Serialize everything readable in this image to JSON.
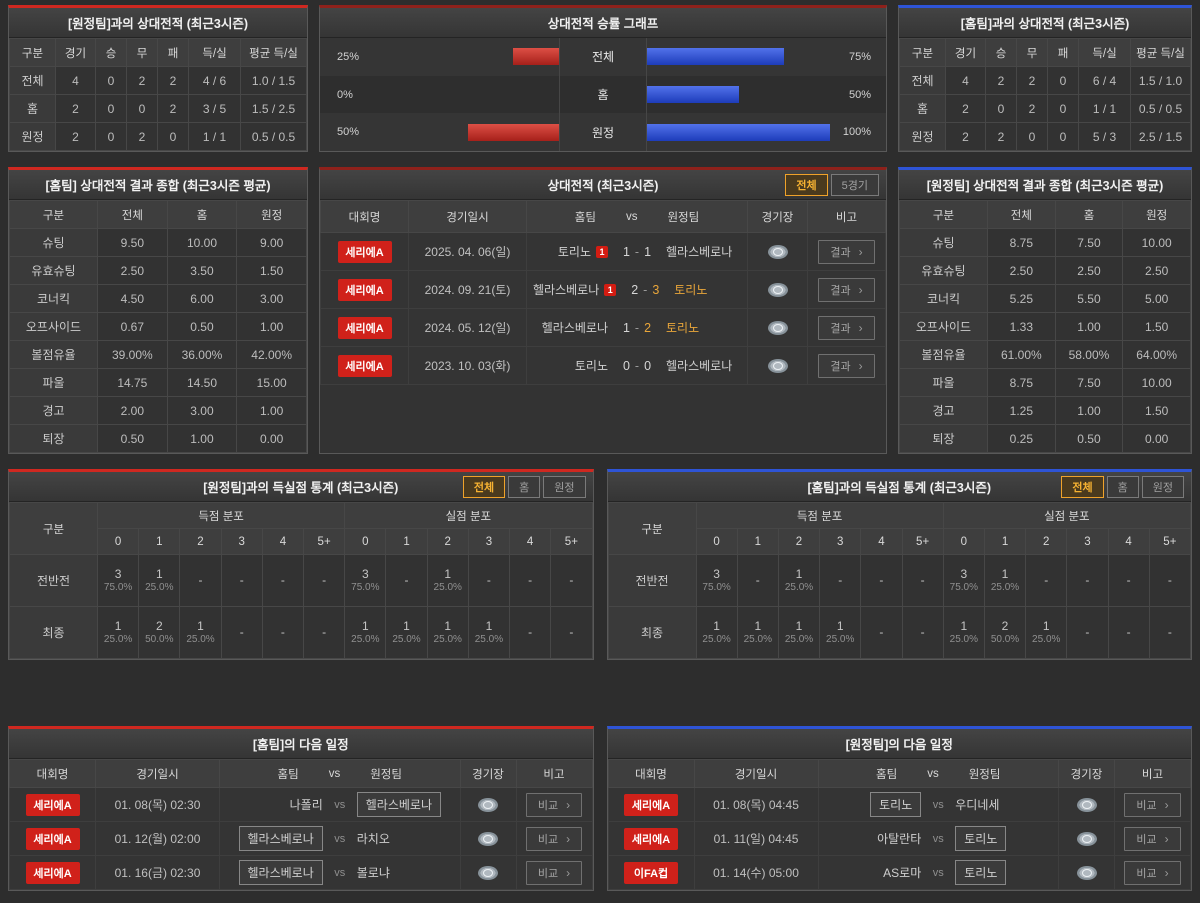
{
  "colors": {
    "accent_red": "#cf2820",
    "accent_blue": "#2e54d6",
    "badge_red": "#d0211a",
    "highlight_yellow": "#e9a63a",
    "bar_red": "#a6201a",
    "bar_blue": "#1d3cba"
  },
  "icons": {
    "chevron": "›"
  },
  "records": {
    "vs_away": {
      "title": "[원정팀]과의 상대전적 (최근3시즌)",
      "head": [
        "구분",
        "경기",
        "승",
        "무",
        "패",
        "득/실",
        "평균 득/실"
      ],
      "rows": [
        [
          "전체",
          "4",
          "0",
          "2",
          "2",
          "4 / 6",
          "1.0 / 1.5"
        ],
        [
          "홈",
          "2",
          "0",
          "0",
          "2",
          "3 / 5",
          "1.5 / 2.5"
        ],
        [
          "원정",
          "2",
          "0",
          "2",
          "0",
          "1 / 1",
          "0.5 / 0.5"
        ]
      ]
    },
    "vs_home": {
      "title": "[홈팀]과의 상대전적 (최근3시즌)",
      "head": [
        "구분",
        "경기",
        "승",
        "무",
        "패",
        "득/실",
        "평균 득/실"
      ],
      "rows": [
        [
          "전체",
          "4",
          "2",
          "2",
          "0",
          "6 / 4",
          "1.5 / 1.0"
        ],
        [
          "홈",
          "2",
          "0",
          "2",
          "0",
          "1 / 1",
          "0.5 / 0.5"
        ],
        [
          "원정",
          "2",
          "2",
          "0",
          "0",
          "5 / 3",
          "2.5 / 1.5"
        ]
      ]
    }
  },
  "winrate_graph": {
    "title": "상대전적 승률 그래프",
    "rows": [
      {
        "left_label": "25%",
        "left_value": 25,
        "center": "전체",
        "right_value": 75,
        "right_label": "75%"
      },
      {
        "left_label": "0%",
        "left_value": 0,
        "center": "홈",
        "right_value": 50,
        "right_label": "50%"
      },
      {
        "left_label": "50%",
        "left_value": 50,
        "center": "원정",
        "right_value": 100,
        "right_label": "100%"
      }
    ]
  },
  "summaries": {
    "home": {
      "title": "[홈팀] 상대전적 결과 종합 (최근3시즌 평균)",
      "head": [
        "구분",
        "전체",
        "홈",
        "원정"
      ],
      "rows": [
        [
          "슈팅",
          "9.50",
          "10.00",
          "9.00"
        ],
        [
          "유효슈팅",
          "2.50",
          "3.50",
          "1.50"
        ],
        [
          "코너킥",
          "4.50",
          "6.00",
          "3.00"
        ],
        [
          "오프사이드",
          "0.67",
          "0.50",
          "1.00"
        ],
        [
          "볼점유율",
          "39.00%",
          "36.00%",
          "42.00%"
        ],
        [
          "파울",
          "14.75",
          "14.50",
          "15.00"
        ],
        [
          "경고",
          "2.00",
          "3.00",
          "1.00"
        ],
        [
          "퇴장",
          "0.50",
          "1.00",
          "0.00"
        ]
      ]
    },
    "away": {
      "title": "[원정팀] 상대전적 결과 종합 (최근3시즌 평균)",
      "head": [
        "구분",
        "전체",
        "홈",
        "원정"
      ],
      "rows": [
        [
          "슈팅",
          "8.75",
          "7.50",
          "10.00"
        ],
        [
          "유효슈팅",
          "2.50",
          "2.50",
          "2.50"
        ],
        [
          "코너킥",
          "5.25",
          "5.50",
          "5.00"
        ],
        [
          "오프사이드",
          "1.33",
          "1.00",
          "1.50"
        ],
        [
          "볼점유율",
          "61.00%",
          "58.00%",
          "64.00%"
        ],
        [
          "파울",
          "8.75",
          "7.50",
          "10.00"
        ],
        [
          "경고",
          "1.25",
          "1.00",
          "1.50"
        ],
        [
          "퇴장",
          "0.25",
          "0.50",
          "0.00"
        ]
      ]
    }
  },
  "h2h": {
    "title": "상대전적 (최근3시즌)",
    "tabs": [
      {
        "label": "전체"
      },
      {
        "label": "5경기"
      }
    ],
    "head": {
      "league": "대회명",
      "date": "경기일시",
      "home": "홈팀",
      "vs": "vs",
      "away": "원정팀",
      "stadium": "경기장",
      "note": "비고"
    },
    "result_label": "결과",
    "score_sep": "-",
    "rows": [
      {
        "league": "세리에A",
        "date": "2025. 04. 06(일)",
        "home": "토리노",
        "home_card": "1",
        "score_home": "1",
        "score_away": "1",
        "away": "헬라스베로나"
      },
      {
        "league": "세리에A",
        "date": "2024. 09. 21(토)",
        "home": "헬라스베로나",
        "home_card": "1",
        "score_home": "2",
        "score_away": "3",
        "away": "토리노"
      },
      {
        "league": "세리에A",
        "date": "2024. 05. 12(일)",
        "home": "헬라스베로나",
        "score_home": "1",
        "score_away": "2",
        "away": "토리노"
      },
      {
        "league": "세리에A",
        "date": "2023. 10. 03(화)",
        "home": "토리노",
        "score_home": "0",
        "score_away": "0",
        "away": "헬라스베로나"
      }
    ]
  },
  "goal_stats": {
    "vs_away": {
      "title": "[원정팀]과의 득실점 통계 (최근3시즌)",
      "tabs": [
        {
          "label": "전체"
        },
        {
          "label": "홈"
        },
        {
          "label": "원정"
        }
      ],
      "col_label": "구분",
      "scored_label": "득점 분포",
      "conceded_label": "실점 분포",
      "bins": [
        "0",
        "1",
        "2",
        "3",
        "4",
        "5+"
      ],
      "rows": [
        {
          "label": "전반전",
          "scored": [
            {
              "n": "3",
              "p": "75.0%"
            },
            {
              "n": "1",
              "p": "25.0%"
            },
            {
              "n": "-",
              "p": ""
            },
            {
              "n": "-",
              "p": ""
            },
            {
              "n": "-",
              "p": ""
            },
            {
              "n": "-",
              "p": ""
            }
          ],
          "conceded": [
            {
              "n": "3",
              "p": "75.0%"
            },
            {
              "n": "-",
              "p": ""
            },
            {
              "n": "1",
              "p": "25.0%"
            },
            {
              "n": "-",
              "p": ""
            },
            {
              "n": "-",
              "p": ""
            },
            {
              "n": "-",
              "p": ""
            }
          ]
        },
        {
          "label": "최종",
          "scored": [
            {
              "n": "1",
              "p": "25.0%"
            },
            {
              "n": "2",
              "p": "50.0%"
            },
            {
              "n": "1",
              "p": "25.0%"
            },
            {
              "n": "-",
              "p": ""
            },
            {
              "n": "-",
              "p": ""
            },
            {
              "n": "-",
              "p": ""
            }
          ],
          "conceded": [
            {
              "n": "1",
              "p": "25.0%"
            },
            {
              "n": "1",
              "p": "25.0%"
            },
            {
              "n": "1",
              "p": "25.0%"
            },
            {
              "n": "1",
              "p": "25.0%"
            },
            {
              "n": "-",
              "p": ""
            },
            {
              "n": "-",
              "p": ""
            }
          ]
        }
      ]
    },
    "vs_home": {
      "title": "[홈팀]과의 득실점 통계 (최근3시즌)",
      "tabs": [
        {
          "label": "전체"
        },
        {
          "label": "홈"
        },
        {
          "label": "원정"
        }
      ],
      "col_label": "구분",
      "scored_label": "득점 분포",
      "conceded_label": "실점 분포",
      "bins": [
        "0",
        "1",
        "2",
        "3",
        "4",
        "5+"
      ],
      "rows": [
        {
          "label": "전반전",
          "scored": [
            {
              "n": "3",
              "p": "75.0%"
            },
            {
              "n": "-",
              "p": ""
            },
            {
              "n": "1",
              "p": "25.0%"
            },
            {
              "n": "-",
              "p": ""
            },
            {
              "n": "-",
              "p": ""
            },
            {
              "n": "-",
              "p": ""
            }
          ],
          "conceded": [
            {
              "n": "3",
              "p": "75.0%"
            },
            {
              "n": "1",
              "p": "25.0%"
            },
            {
              "n": "-",
              "p": ""
            },
            {
              "n": "-",
              "p": ""
            },
            {
              "n": "-",
              "p": ""
            },
            {
              "n": "-",
              "p": ""
            }
          ]
        },
        {
          "label": "최종",
          "scored": [
            {
              "n": "1",
              "p": "25.0%"
            },
            {
              "n": "1",
              "p": "25.0%"
            },
            {
              "n": "1",
              "p": "25.0%"
            },
            {
              "n": "1",
              "p": "25.0%"
            },
            {
              "n": "-",
              "p": ""
            },
            {
              "n": "-",
              "p": ""
            }
          ],
          "conceded": [
            {
              "n": "1",
              "p": "25.0%"
            },
            {
              "n": "2",
              "p": "50.0%"
            },
            {
              "n": "1",
              "p": "25.0%"
            },
            {
              "n": "-",
              "p": ""
            },
            {
              "n": "-",
              "p": ""
            },
            {
              "n": "-",
              "p": ""
            }
          ]
        }
      ]
    }
  },
  "schedules": {
    "home": {
      "title": "[홈팀]의 다음 일정",
      "head": {
        "league": "대회명",
        "date": "경기일시",
        "home": "홈팀",
        "vs": "vs",
        "away": "원정팀",
        "stadium": "경기장",
        "note": "비고"
      },
      "compare_label": "비교",
      "rows": [
        {
          "league": "세리에A",
          "date": "01. 08(목) 02:30",
          "home": "나폴리",
          "away": "헬라스베로나"
        },
        {
          "league": "세리에A",
          "date": "01. 12(월) 02:00",
          "home": "헬라스베로나",
          "away": "라치오"
        },
        {
          "league": "세리에A",
          "date": "01. 16(금) 02:30",
          "home": "헬라스베로나",
          "away": "볼로냐"
        }
      ]
    },
    "away": {
      "title": "[원정팀]의 다음 일정",
      "head": {
        "league": "대회명",
        "date": "경기일시",
        "home": "홈팀",
        "vs": "vs",
        "away": "원정팀",
        "stadium": "경기장",
        "note": "비고"
      },
      "compare_label": "비교",
      "rows": [
        {
          "league": "세리에A",
          "date": "01. 08(목) 04:45",
          "home": "토리노",
          "away": "우디네세"
        },
        {
          "league": "세리에A",
          "date": "01. 11(일) 04:45",
          "home": "아탈란타",
          "away": "토리노"
        },
        {
          "league": "이FA컵",
          "date": "01. 14(수) 05:00",
          "home": "AS로마",
          "away": "토리노"
        }
      ]
    }
  }
}
